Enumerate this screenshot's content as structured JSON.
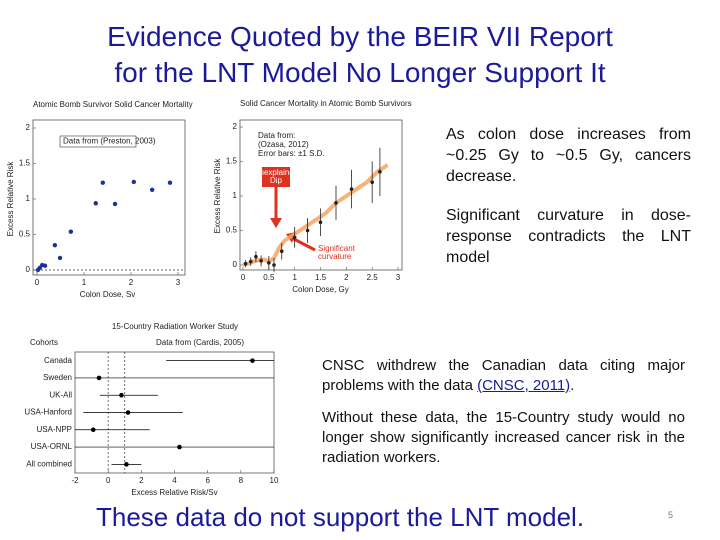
{
  "title_lines": [
    "Evidence Quoted by the BEIR VII Report",
    "for the LNT Model No Longer Support It"
  ],
  "notes_top": [
    "As colon dose increases from ~0.25 Gy to ~0.5 Gy, cancers decrease.",
    "Significant curvature in dose-response contradicts the LNT model"
  ],
  "notes_bottom": {
    "text_before": "CNSC withdrew the Canadian data citing major problems with the data ",
    "link": "(CNSC, 2011)",
    "text_after": ".",
    "paragraph2": "Without these data, the 15-Country study would no longer show significantly increased cancer risk in the radiation workers."
  },
  "conclusion": "These data do not support the LNT model.",
  "page_number": "5",
  "charts": [
    {
      "type": "scatter",
      "title": "Atomic Bomb Survivor Solid Cancer Mortality",
      "legend_label": "Data from (Preston, 2003)",
      "xlabel": "Colon Dose, Sv",
      "ylabel": "Excess Relative Risk",
      "color": "#1f2fa0",
      "xlim": [
        0,
        3
      ],
      "ylim": [
        0,
        2
      ],
      "xticks": [
        0,
        1,
        2,
        3
      ],
      "yticks": [
        0,
        0.5,
        1,
        1.5,
        2
      ],
      "x": [
        0.02,
        0.06,
        0.11,
        0.17,
        0.38,
        0.49,
        0.72,
        1.25,
        1.4,
        1.66,
        2.06,
        2.45,
        2.83
      ],
      "y": [
        0,
        0.03,
        0.07,
        0.06,
        0.35,
        0.17,
        0.54,
        0.94,
        1.23,
        0.93,
        1.24,
        1.13,
        1.23
      ]
    },
    {
      "type": "errorbar",
      "title": "Solid Cancer Mortality in Atomic Bomb Survivors",
      "xlabel": "Colon Dose, Gy",
      "ylabel": "Excess Relative Risk",
      "color": "#222222",
      "fit_color": "#f4a460",
      "annotations": [
        "Data from:",
        "(Ozasa, 2012)",
        "Error bars: ±1 S.D.",
        "Unexplained",
        "Dip",
        "Significant",
        "curvature"
      ],
      "xlim": [
        0,
        3
      ],
      "ylim": [
        0,
        2
      ],
      "xticks": [
        0,
        0.5,
        1,
        1.5,
        2,
        2.5,
        3
      ],
      "yticks": [
        0,
        0.5,
        1,
        1.5,
        2
      ],
      "x": [
        0.05,
        0.15,
        0.25,
        0.35,
        0.5,
        0.6,
        0.75,
        1.0,
        1.25,
        1.5,
        1.8,
        2.1,
        2.5,
        2.65
      ],
      "y": [
        0.02,
        0.05,
        0.12,
        0.06,
        0.03,
        0.0,
        0.2,
        0.4,
        0.5,
        0.62,
        0.9,
        1.1,
        1.2,
        1.35
      ],
      "error": [
        0.05,
        0.06,
        0.08,
        0.08,
        0.1,
        0.1,
        0.12,
        0.15,
        0.18,
        0.2,
        0.25,
        0.28,
        0.3,
        0.35
      ],
      "fit_x": [
        0,
        0.1,
        0.2,
        0.3,
        0.4,
        0.5,
        0.6,
        0.7,
        0.8,
        1.0,
        1.2,
        1.4,
        1.6,
        1.8,
        2.0,
        2.2,
        2.4,
        2.6,
        2.8
      ],
      "fit_y": [
        0,
        0.02,
        0.05,
        0.07,
        0.08,
        0.05,
        0.1,
        0.25,
        0.35,
        0.45,
        0.55,
        0.65,
        0.75,
        0.9,
        1.0,
        1.1,
        1.2,
        1.35,
        1.45
      ]
    },
    {
      "type": "forest",
      "title": "15-Country Radiation Worker Study",
      "subtitle": "Data from (Cardis, 2005)",
      "category_header": "Cohorts",
      "xlabel": "Excess Relative Risk/Sv",
      "color": "#000000",
      "categories": [
        "Canada",
        "Sweden",
        "UK-All",
        "USA-Hanford",
        "USA-NPP",
        "USA-ORNL",
        "All combined"
      ],
      "values": [
        8.7,
        -0.55,
        0.8,
        1.2,
        -0.9,
        4.3,
        1.1
      ],
      "lower": [
        3.5,
        -2,
        -0.5,
        -1.5,
        -2,
        -2,
        0.2
      ],
      "upper": [
        10,
        10,
        3,
        4.5,
        2.5,
        10,
        2
      ],
      "xlim": [
        -2,
        10
      ],
      "xticks": [
        -2,
        0,
        2,
        4,
        6,
        8,
        10
      ]
    }
  ]
}
